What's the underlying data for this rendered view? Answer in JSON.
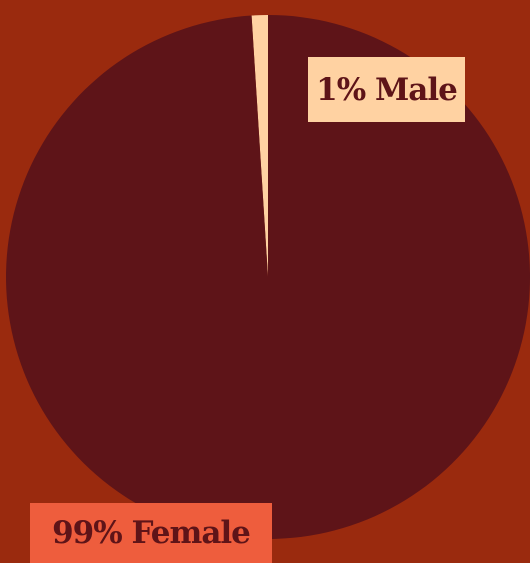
{
  "chart_data": {
    "type": "pie",
    "title": "",
    "slices": [
      {
        "label": "Male",
        "value": 1,
        "color": "#ffd2a2",
        "label_text": "1% Male"
      },
      {
        "label": "Female",
        "value": 99,
        "color": "#5e1418",
        "label_text": "99% Female"
      }
    ],
    "legend": "none",
    "background_color": "#9a2a0e",
    "label_box_colors": {
      "male": "#ffd2a2",
      "female": "#ee5d3d"
    }
  }
}
